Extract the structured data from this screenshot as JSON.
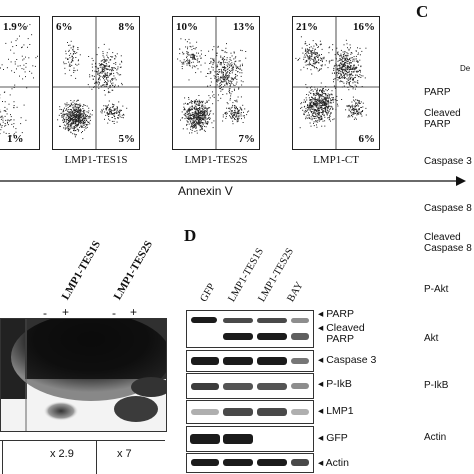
{
  "flow": {
    "plots": [
      {
        "name": "partial",
        "ul": "",
        "ur": "1.9%",
        "lr": "1%",
        "label": ""
      },
      {
        "name": "tes1s",
        "ul": "6%",
        "ur": "8%",
        "lr": "5%",
        "label": "LMP1-TES1S"
      },
      {
        "name": "tes2s",
        "ul": "10%",
        "ur": "13%",
        "lr": "7%",
        "label": "LMP1-TES2S"
      },
      {
        "name": "ct",
        "ul": "21%",
        "ur": "16%",
        "lr": "6%",
        "label": "LMP1-CT"
      }
    ],
    "axis_label": "Annexin V"
  },
  "panel_c": {
    "letter": "C",
    "header_fragment": "De",
    "labels": [
      "PARP",
      "Cleaved PARP",
      "Caspase 3",
      "Caspase 8",
      "Cleaved Caspase 8",
      "P-Akt",
      "Akt",
      "P-IkB",
      "Actin"
    ]
  },
  "left_blot": {
    "lanes": [
      "LMP1-TES1S",
      "LMP1-TES2S"
    ],
    "signs": [
      "-",
      "+",
      "-",
      "+"
    ],
    "folds": [
      "x 2.9",
      "x 7"
    ]
  },
  "panel_d": {
    "letter": "D",
    "lanes": [
      "GFP",
      "LMP1-TES1S",
      "LMP1-TES2S",
      "BAY"
    ],
    "rows": [
      "PARP",
      "Cleaved PARP",
      "Caspase 3",
      "P-IkB",
      "LMP1",
      "GFP",
      "Actin"
    ]
  }
}
